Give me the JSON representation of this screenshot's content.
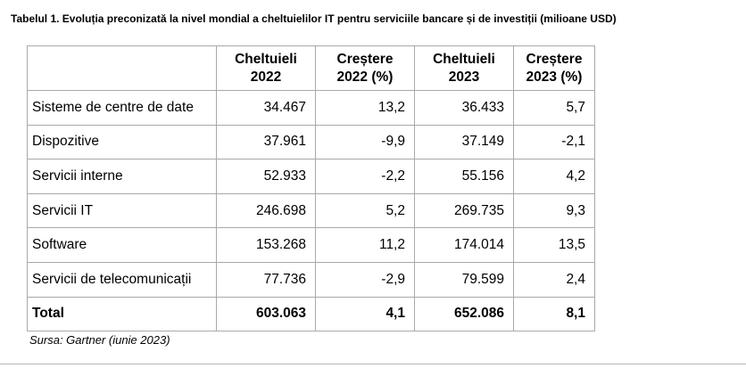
{
  "caption": "Tabelul 1. Evoluția preconizată la nivel mondial a cheltuielilor IT pentru serviciile bancare și de investiții (milioane USD)",
  "headers": [
    "",
    "Cheltuieli\n2022",
    "Creștere\n2022 (%)",
    "Cheltuieli\n2023",
    "Creștere\n2023 (%)"
  ],
  "rows": [
    {
      "name": "Sisteme de centre de date",
      "spend_2022": "34.467",
      "growth_2022": "13,2",
      "spend_2023": "36.433",
      "growth_2023": "5,7"
    },
    {
      "name": "Dispozitive",
      "spend_2022": "37.961",
      "growth_2022": "-9,9",
      "spend_2023": "37.149",
      "growth_2023": "-2,1"
    },
    {
      "name": "Servicii interne",
      "spend_2022": "52.933",
      "growth_2022": "-2,2",
      "spend_2023": "55.156",
      "growth_2023": "4,2"
    },
    {
      "name": "Servicii IT",
      "spend_2022": "246.698",
      "growth_2022": "5,2",
      "spend_2023": "269.735",
      "growth_2023": "9,3"
    },
    {
      "name": "Software",
      "spend_2022": "153.268",
      "growth_2022": "11,2",
      "spend_2023": "174.014",
      "growth_2023": "13,5"
    },
    {
      "name": "Servicii de telecomunicații",
      "spend_2022": "77.736",
      "growth_2022": "-2,9",
      "spend_2023": "79.599",
      "growth_2023": "2,4"
    }
  ],
  "total": {
    "name": "Total",
    "spend_2022": "603.063",
    "growth_2022": "4,1",
    "spend_2023": "652.086",
    "growth_2023": "8,1"
  },
  "source": "Sursa: Gartner (iunie 2023)"
}
